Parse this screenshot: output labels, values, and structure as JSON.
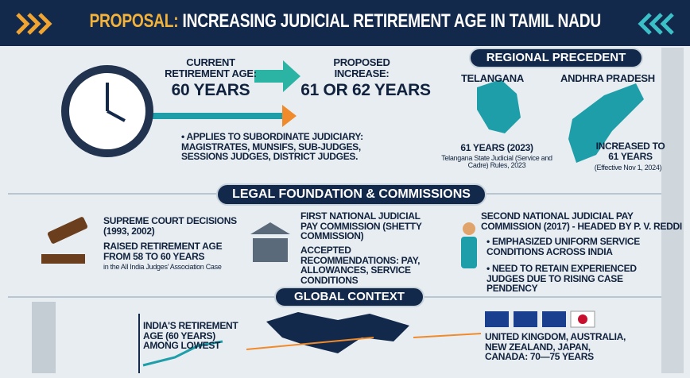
{
  "header": {
    "prefix": "PROPOSAL:",
    "title": "INCREASING JUDICIAL RETIREMENT AGE IN TAMIL NADU"
  },
  "current": {
    "label": "CURRENT RETIREMENT AGE:",
    "value": "60 YEARS"
  },
  "proposed": {
    "label": "PROPOSED INCREASE:",
    "value": "61 OR 62 YEARS"
  },
  "applies": "APPLIES TO SUBORDINATE JUDICIARY: MAGISTRATES, MUNSIFS, SUB-JUDGES, SESSIONS JUDGES, DISTRICT JUDGES.",
  "regional": {
    "heading": "REGIONAL PRECEDENT",
    "states": [
      {
        "name": "TELANGANA",
        "age": "61 YEARS (2023)",
        "note": "Telangana State Judicial (Service and Cadre) Rules, 2023"
      },
      {
        "name": "ANDHRA PRADESH",
        "age": "INCREASED TO 61 YEARS",
        "note": "(Effective Nov 1, 2024)"
      }
    ]
  },
  "legal": {
    "heading": "LEGAL FOUNDATION & COMMISSIONS",
    "items": [
      {
        "title": "SUPREME COURT DECISIONS (1993, 2002)",
        "text": "RAISED RETIREMENT AGE FROM 58 TO 60 YEARS",
        "note": "in the All India Judges' Association Case"
      },
      {
        "title": "FIRST NATIONAL JUDICIAL PAY COMMISSION (SHETTY COMMISSION)",
        "text": "ACCEPTED RECOMMENDATIONS: PAY, ALLOWANCES, SERVICE CONDITIONS"
      },
      {
        "title": "SECOND NATIONAL JUDICIAL PAY COMMISSION (2017) - HEADED BY P. V. REDDI",
        "bullets": [
          "EMPHASIZED UNIFORM SERVICE CONDITIONS ACROSS INDIA",
          "NEED TO RETAIN EXPERIENCED JUDGES DUE TO RISING CASE PENDENCY"
        ]
      }
    ]
  },
  "global": {
    "heading": "GLOBAL CONTEXT",
    "india": "INDIA'S RETIREMENT AGE (60 YEARS) AMONG LOWEST",
    "others": "UNITED KINGDOM, AUSTRALIA, NEW ZEALAND, JAPAN, CANADA: 70—75 YEARS"
  }
}
